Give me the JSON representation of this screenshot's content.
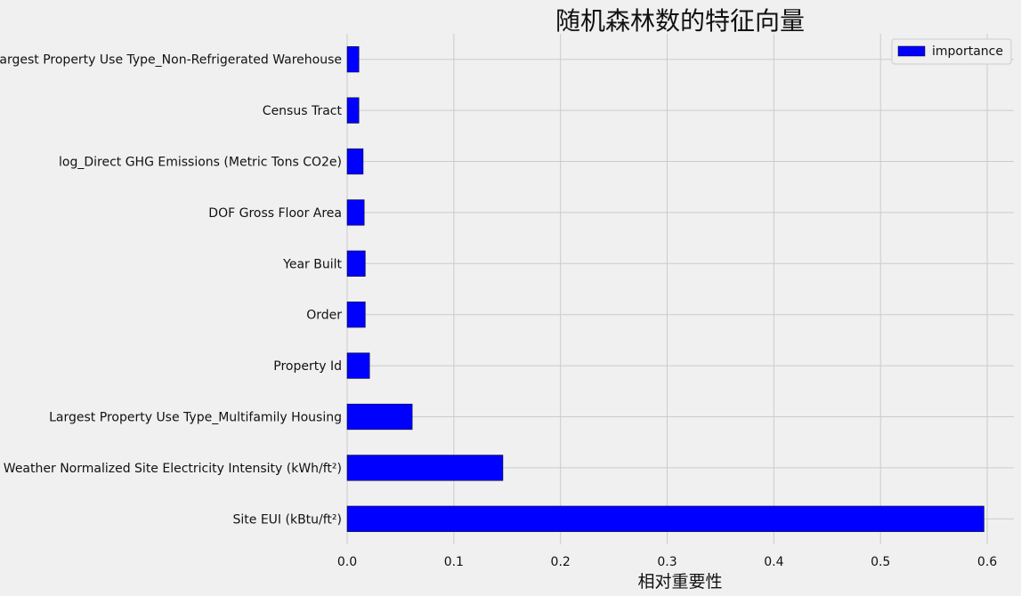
{
  "chart_data": {
    "type": "bar",
    "orientation": "horizontal",
    "title": "随机森林数的特征向量",
    "xlabel": "相对重要性",
    "ylabel": "",
    "xlim": [
      0,
      0.625
    ],
    "xticks": [
      "0.0",
      "0.1",
      "0.2",
      "0.3",
      "0.4",
      "0.5",
      "0.6"
    ],
    "grid": true,
    "legend_position": "top-right",
    "categories": [
      "Site EUI (kBtu/ft²)",
      "Weather Normalized Site Electricity Intensity (kWh/ft²)",
      "Largest Property Use Type_Multifamily Housing",
      "Property Id",
      "Order",
      "Year Built",
      "DOF Gross Floor Area",
      "log_Direct GHG Emissions (Metric Tons CO2e)",
      "Census Tract",
      "Largest Property Use Type_Non-Refrigerated Warehouse"
    ],
    "series": [
      {
        "name": "importance",
        "color": "#0000ff",
        "values": [
          0.597,
          0.146,
          0.061,
          0.021,
          0.017,
          0.017,
          0.016,
          0.015,
          0.011,
          0.011
        ]
      }
    ]
  }
}
